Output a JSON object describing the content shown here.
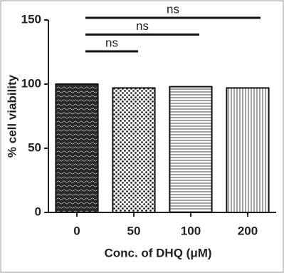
{
  "chart_data": {
    "type": "bar",
    "xlabel": "Conc. of DHQ (μM)",
    "ylabel": "% cell viability",
    "categories": [
      "0",
      "50",
      "100",
      "200"
    ],
    "values": [
      100,
      97,
      98,
      97
    ],
    "ylim": [
      0,
      150
    ],
    "yticks": [
      0,
      50,
      100,
      150
    ],
    "annotations": [
      "ns",
      "ns",
      "ns"
    ]
  }
}
